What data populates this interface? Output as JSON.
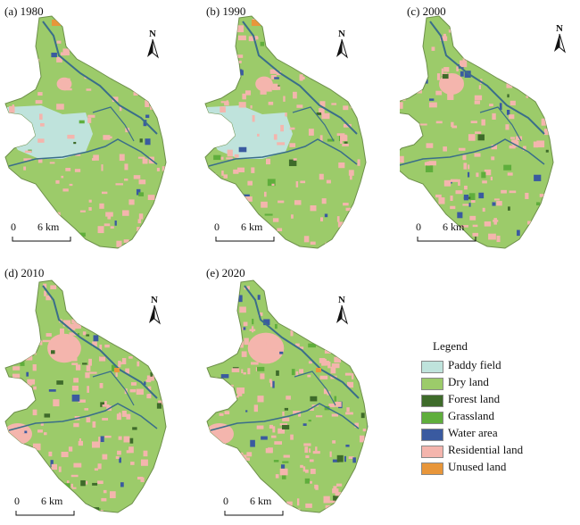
{
  "panels": [
    {
      "id": "a",
      "label": "(a) 1980",
      "paddy": true,
      "scale_zero": "0",
      "scale_six": "6 km",
      "north": "N"
    },
    {
      "id": "b",
      "label": "(b) 1990",
      "paddy": true,
      "scale_zero": "0",
      "scale_six": "6 km",
      "north": "N"
    },
    {
      "id": "c",
      "label": "(c) 2000",
      "paddy": false,
      "scale_zero": "0",
      "scale_six": "6 km",
      "north": "N"
    },
    {
      "id": "d",
      "label": "(d) 2010",
      "paddy": false,
      "scale_zero": "0",
      "scale_six": "6 km",
      "north": "N"
    },
    {
      "id": "e",
      "label": "(e) 2020",
      "paddy": false,
      "scale_zero": "0",
      "scale_six": "6 km",
      "north": "N"
    }
  ],
  "legend": {
    "title": "Legend",
    "items": [
      {
        "label": "Paddy field",
        "color": "#bfe3dc"
      },
      {
        "label": "Dry land",
        "color": "#9ccb6a"
      },
      {
        "label": "Forest land",
        "color": "#3e6b2a"
      },
      {
        "label": "Grassland",
        "color": "#5fae3c"
      },
      {
        "label": "Water area",
        "color": "#3a5aa0"
      },
      {
        "label": "Residential land",
        "color": "#f4b5ad"
      },
      {
        "label": "Unused land",
        "color": "#e8963a"
      }
    ]
  }
}
